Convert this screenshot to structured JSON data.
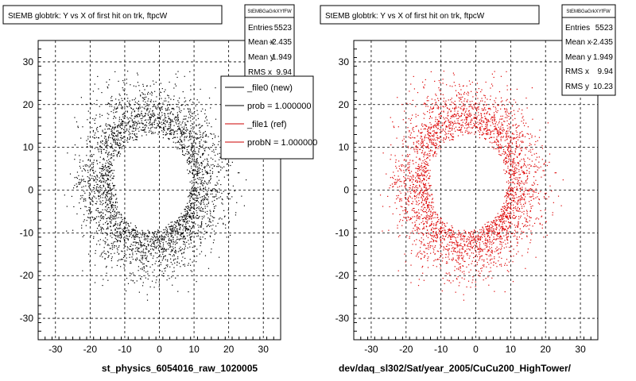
{
  "chart_data": [
    {
      "type": "scatter",
      "title": "StEMB globtrk: Y vs X of first hit on trk, ftpcW",
      "xlabel": "st_physics_6054016_raw_1020005",
      "ylabel": "",
      "xlim": [
        -35,
        35
      ],
      "ylim": [
        -35,
        35
      ],
      "xticks": [
        -30,
        -20,
        -10,
        0,
        10,
        20,
        30
      ],
      "yticks": [
        -30,
        -20,
        -10,
        0,
        10,
        20,
        30
      ],
      "grid": true,
      "marker_color": "#000000",
      "stats": {
        "header": "StEMBGaGrkXYfFW",
        "rows": [
          {
            "label": "Entries",
            "value": "5523"
          },
          {
            "label": "Mean x",
            "value": "-2.435"
          },
          {
            "label": "Mean y",
            "value": "1.949"
          },
          {
            "label": "RMS x",
            "value": "9.94"
          }
        ]
      },
      "legend": {
        "placement": "top-right",
        "entries": [
          {
            "label": "_file0 (new)",
            "color": "#000000"
          },
          {
            "label": "prob = 1.000000",
            "color": "#000000"
          },
          {
            "label": "_file1 (ref)",
            "color": "#cc0000"
          },
          {
            "label": "probN = 1.000000",
            "color": "#cc0000"
          }
        ]
      }
    },
    {
      "type": "scatter",
      "title": "StEMB globtrk: Y vs X of first hit on trk, ftpcW",
      "xlabel": "dev/daq_sl302/Sat/year_2005/CuCu200_HighTower/",
      "ylabel": "",
      "xlim": [
        -35,
        35
      ],
      "ylim": [
        -35,
        35
      ],
      "xticks": [
        -30,
        -20,
        -10,
        0,
        10,
        20,
        30
      ],
      "yticks": [
        -30,
        -20,
        -10,
        0,
        10,
        20,
        30
      ],
      "grid": true,
      "marker_color": "#dd0000",
      "stats": {
        "header": "StEMBGaGrkXYfFW",
        "rows": [
          {
            "label": "Entries",
            "value": "5523"
          },
          {
            "label": "Mean x",
            "value": "-2.435"
          },
          {
            "label": "Mean y",
            "value": "1.949"
          },
          {
            "label": "RMS x",
            "value": "9.94"
          },
          {
            "label": "RMS y",
            "value": "10.23"
          }
        ]
      }
    }
  ]
}
